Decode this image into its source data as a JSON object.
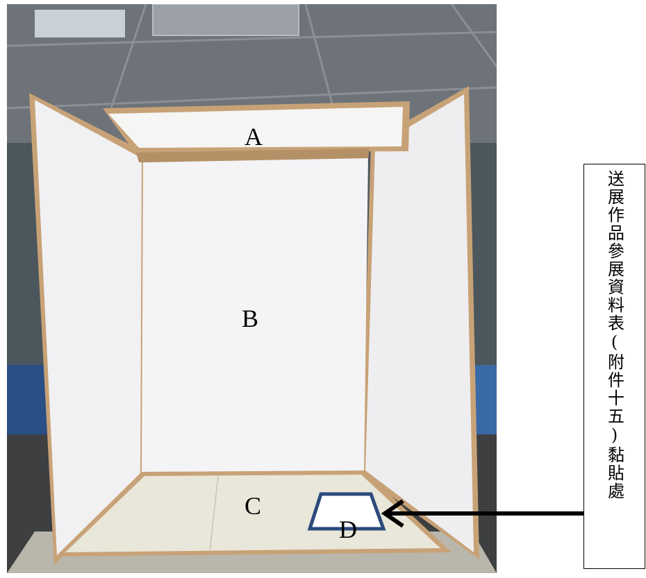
{
  "labels": {
    "a": "A",
    "b": "B",
    "c": "C",
    "d": "D"
  },
  "callout": {
    "text": "送展作品參展資料表(附件十五)黏貼處"
  },
  "colors": {
    "board": "#f4f4f6",
    "frame": "#c8a277",
    "ceiling": "#6e7479",
    "desk": "#e9e6da",
    "zone_d_border": "#2c4a7c",
    "arrow": "#000000"
  }
}
